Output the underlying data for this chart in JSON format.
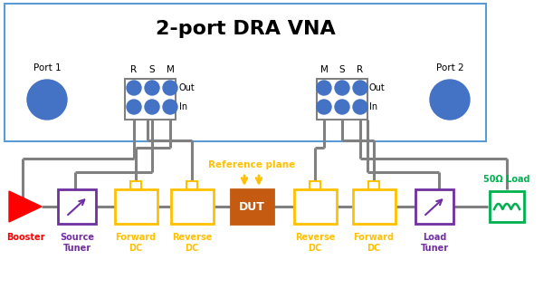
{
  "title": "2-port DRA VNA",
  "title_fontsize": 16,
  "bg_color": "#ffffff",
  "dot_color": "#4472C4",
  "gray": "#808080",
  "gold": "#FFC000",
  "red": "#FF0000",
  "purple": "#7030A0",
  "orange": "#C55A11",
  "green": "#00B050",
  "vna_blue": "#5B9BD5",
  "booster_label": "Booster",
  "source_tuner_label": "Source\nTuner",
  "forward_dc_label1": "Forward\nDC",
  "reverse_dc_label1": "Reverse\nDC",
  "dut_label": "DUT",
  "reverse_dc_label2": "Reverse\nDC",
  "forward_dc_label2": "Forward\nDC",
  "load_tuner_label": "Load\nTuner",
  "load_label": "50Ω Load",
  "ref_plane_label": "Reference plane",
  "port1_label": "Port 1",
  "port2_label": "Port 2",
  "left_labels": [
    "R",
    "S",
    "M"
  ],
  "right_labels": [
    "M",
    "S",
    "R"
  ]
}
